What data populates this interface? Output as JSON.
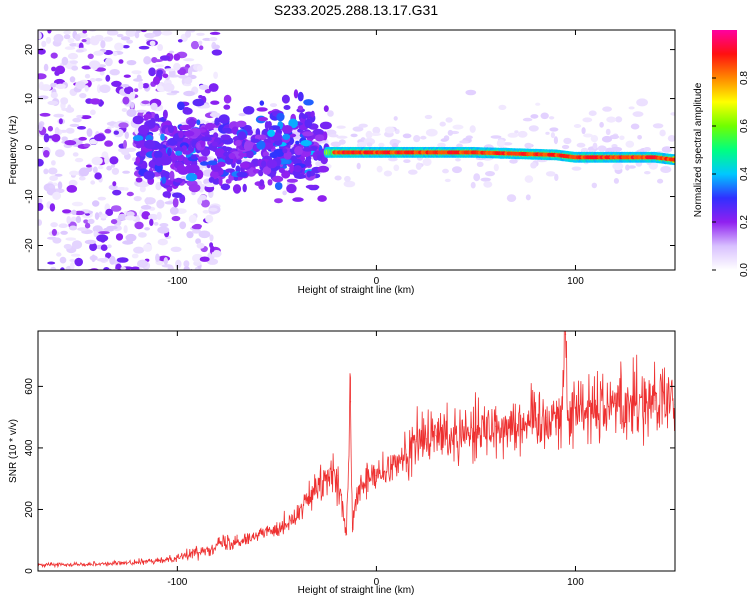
{
  "figure_title": "S233.2025.288.13.17.G31",
  "chart_data": [
    {
      "type": "heatmap",
      "title": "S233.2025.288.13.17.G31",
      "xlabel": "Height of straight line (km)",
      "ylabel": "Frequency (Hz)",
      "xlim": [
        -170,
        150
      ],
      "ylim": [
        -25,
        24
      ],
      "x_ticks": [
        -100,
        0,
        100
      ],
      "y_ticks": [
        -20,
        -10,
        0,
        10,
        20
      ],
      "x_tick_labels": [
        "-100",
        "0",
        "100"
      ],
      "y_tick_labels": [
        "-20",
        "-10",
        "0",
        "10",
        "20"
      ],
      "colorbar": {
        "label": "Normalized spectral amplitude",
        "range": [
          0,
          1
        ],
        "ticks": [
          0.0,
          0.2,
          0.4,
          0.6,
          0.8
        ],
        "tick_labels": [
          "0.0",
          "0.2",
          "0.4",
          "0.6",
          "0.8"
        ],
        "colors": [
          "#ffffff",
          "#d8c0ff",
          "#9020f0",
          "#3030ff",
          "#00c8ff",
          "#00ff80",
          "#70ff00",
          "#ffff00",
          "#ff8800",
          "#ff1010",
          "#ff00a0"
        ]
      },
      "ridge": {
        "description_points_x": [
          -25,
          0,
          50,
          90,
          100,
          140,
          150
        ],
        "description_points_freq": [
          -1,
          -1,
          -1,
          -1.5,
          -2,
          -2,
          -2.5
        ]
      },
      "scatter_regions": [
        {
          "x_range": [
            -170,
            -120
          ],
          "freq_spread": 24,
          "level": 0.15
        },
        {
          "x_range": [
            -120,
            -25
          ],
          "freq_spread": 10,
          "level": 0.25
        }
      ]
    },
    {
      "type": "line",
      "xlabel": "Height of straight line (km)",
      "ylabel": "SNR (10 * v/v)",
      "xlim": [
        -170,
        150
      ],
      "ylim": [
        0,
        780
      ],
      "x_ticks": [
        -100,
        0,
        100
      ],
      "y_ticks": [
        0,
        200,
        400,
        600
      ],
      "x_tick_labels": [
        "-100",
        "0",
        "100"
      ],
      "y_tick_labels": [
        "0",
        "200",
        "400",
        "600"
      ],
      "color": "#ee3030",
      "series": [
        {
          "name": "SNR",
          "x": [
            -170,
            -150,
            -130,
            -110,
            -100,
            -90,
            -80,
            -70,
            -60,
            -50,
            -40,
            -35,
            -30,
            -25,
            -20,
            -15,
            -13,
            -12,
            -10,
            -5,
            0,
            5,
            10,
            15,
            20,
            25,
            30,
            40,
            50,
            60,
            70,
            80,
            85,
            90,
            93,
            95,
            96,
            100,
            110,
            120,
            130,
            140,
            150
          ],
          "values": [
            20,
            22,
            25,
            32,
            45,
            60,
            85,
            100,
            115,
            140,
            175,
            230,
            260,
            300,
            310,
            120,
            550,
            140,
            240,
            290,
            310,
            320,
            340,
            380,
            420,
            430,
            440,
            450,
            460,
            470,
            480,
            490,
            500,
            505,
            520,
            770,
            500,
            530,
            540,
            545,
            550,
            555,
            540
          ]
        }
      ]
    }
  ]
}
